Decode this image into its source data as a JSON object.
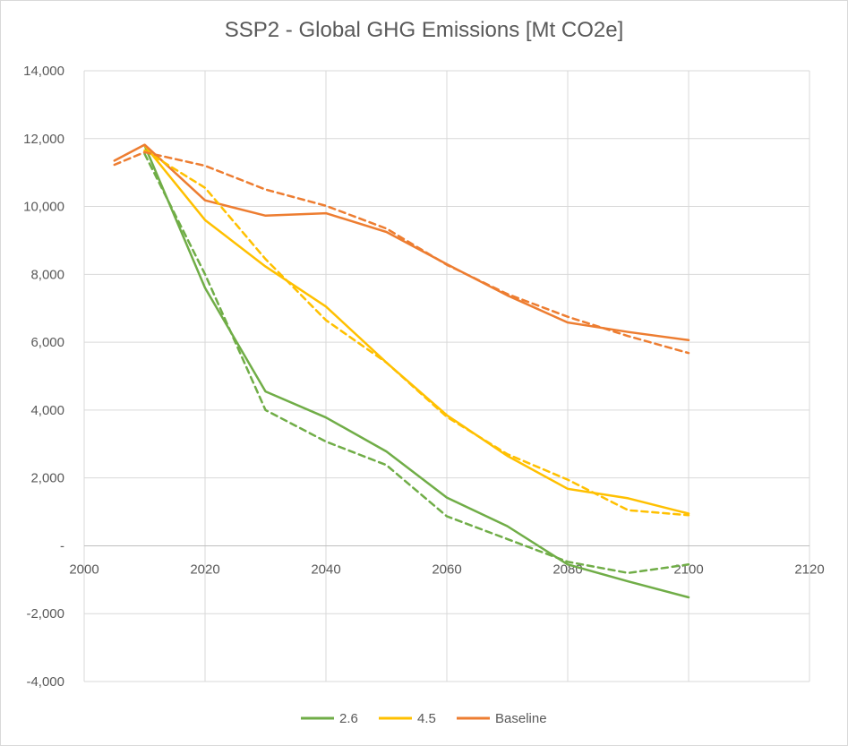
{
  "chart_data": {
    "type": "line",
    "title": "SSP2 - Global GHG Emissions [Mt CO2e]",
    "xlim": [
      2000,
      2120
    ],
    "ylim": [
      -4000,
      14000
    ],
    "x_ticks": [
      2000,
      2020,
      2040,
      2060,
      2080,
      2100,
      2120
    ],
    "x_tick_labels": [
      "2000",
      "2020",
      "2040",
      "2060",
      "2080",
      "2100",
      "2120"
    ],
    "y_ticks": [
      -4000,
      -2000,
      0,
      2000,
      4000,
      6000,
      8000,
      10000,
      12000,
      14000
    ],
    "y_tick_labels": [
      "-4,000",
      "-2,000",
      "-",
      "2,000",
      "4,000",
      "6,000",
      "8,000",
      "10,000",
      "12,000",
      "14,000"
    ],
    "grid": true,
    "legend_position": "bottom",
    "series": [
      {
        "name": "2.6",
        "color": "#70ad47",
        "dash": false,
        "legend": true,
        "x": [
          2010,
          2020,
          2030,
          2040,
          2050,
          2060,
          2070,
          2080,
          2090,
          2100
        ],
        "y": [
          11800,
          7600,
          4550,
          3780,
          2780,
          1420,
          580,
          -550,
          -1050,
          -1520
        ]
      },
      {
        "name": "4.5",
        "color": "#ffc000",
        "dash": false,
        "legend": true,
        "x": [
          2010,
          2020,
          2030,
          2040,
          2050,
          2060,
          2070,
          2080,
          2090,
          2100
        ],
        "y": [
          11800,
          9600,
          8230,
          7050,
          5400,
          3850,
          2650,
          1680,
          1400,
          950
        ]
      },
      {
        "name": "Baseline",
        "color": "#ed7d31",
        "dash": false,
        "legend": true,
        "x": [
          2005,
          2010,
          2020,
          2030,
          2040,
          2050,
          2060,
          2070,
          2080,
          2090,
          2100
        ],
        "y": [
          11350,
          11820,
          10180,
          9730,
          9800,
          9250,
          8300,
          7380,
          6580,
          6300,
          6060
        ]
      },
      {
        "color": "#70ad47",
        "dash": true,
        "legend": false,
        "x": [
          2010,
          2020,
          2030,
          2040,
          2050,
          2060,
          2070,
          2080,
          2090,
          2100
        ],
        "y": [
          11550,
          8000,
          4000,
          3070,
          2380,
          870,
          200,
          -470,
          -800,
          -550
        ]
      },
      {
        "color": "#ffc000",
        "dash": true,
        "legend": false,
        "x": [
          2010,
          2020,
          2030,
          2040,
          2050,
          2060,
          2070,
          2080,
          2090,
          2100
        ],
        "y": [
          11650,
          10550,
          8450,
          6650,
          5400,
          3800,
          2700,
          1950,
          1050,
          900
        ]
      },
      {
        "color": "#ed7d31",
        "dash": true,
        "legend": false,
        "x": [
          2005,
          2010,
          2020,
          2030,
          2040,
          2050,
          2060,
          2070,
          2080,
          2090,
          2100
        ],
        "y": [
          11230,
          11600,
          11200,
          10500,
          10020,
          9350,
          8280,
          7420,
          6750,
          6180,
          5680
        ]
      }
    ]
  }
}
